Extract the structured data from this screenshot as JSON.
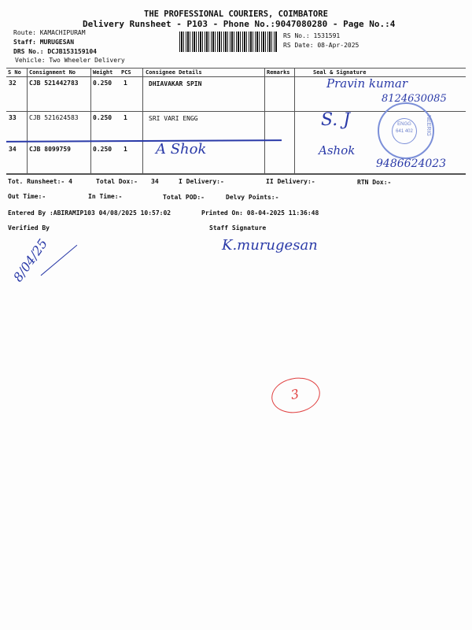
{
  "header": {
    "company": "THE PROFESSIONAL COURIERS, COIMBATORE",
    "title": "Delivery Runsheet - P103 - Phone No.:9047080280 - Page No.:4",
    "route": "Route: KAMACHIPURAM",
    "staff": "Staff: MURUGESAN",
    "drs": "DRS No.: DCJB153159104",
    "vehicle": "Vehicle: Two Wheeler Delivery",
    "rs_no": "RS No.: 1531591",
    "rs_date": "RS Date: 08-Apr-2025"
  },
  "table": {
    "columns": [
      "S No",
      "Consignment No",
      "Weight",
      "PCS",
      "Consignee Details",
      "Remarks",
      "Seal & Signature"
    ],
    "rows": [
      {
        "sno": "32",
        "consignment": "CJB 521442783",
        "weight": "0.250",
        "pcs": "1",
        "consignee": "DHIAVAKAR SPIN",
        "remarks": "",
        "signature": "Pravin kumar",
        "sig_phone": "8124630085"
      },
      {
        "sno": "33",
        "consignment": "CJB 521624583",
        "weight": "0.250",
        "pcs": "1",
        "consignee": "SRI VARI ENGG",
        "remarks": "",
        "signature": "S. J",
        "sig_phone": ""
      },
      {
        "sno": "34",
        "consignment": "CJB 8099759",
        "weight": "0.250",
        "pcs": "1",
        "consignee": "A Shok",
        "remarks": "",
        "signature": "Ashok",
        "sig_phone": "9486624023"
      }
    ]
  },
  "stamp": {
    "ring": "NEERIG",
    "inner": "ENGG",
    "pin": "641 402"
  },
  "summary": {
    "tot_runsheet": "Tot. Runsheet:- 4",
    "total_dox": "Total Dox:-",
    "total_dox_val": "34",
    "i_delivery": "I Delivery:-",
    "ii_delivery": "II Delivery:-",
    "rtn_dox": "RTN Dox:-",
    "out_time": "Out Time:-",
    "in_time": "In Time:-",
    "total_pod": "Total POD:-",
    "delvy_points": "Delvy Points:-",
    "entered_by": "Entered By :ABIRAMIP103 04/08/2025 10:57:02",
    "printed_on": "Printed On: 08-04-2025 11:36:48",
    "verified_by": "Verified By",
    "staff_signature": "Staff Signature",
    "staff_sig_hand": "K.murugesan",
    "verified_hand": "8/04/25",
    "circle_mark": "3"
  },
  "colors": {
    "ink": "#2a3aa8",
    "stamp": "#7b8fd8",
    "red": "#e04040"
  }
}
